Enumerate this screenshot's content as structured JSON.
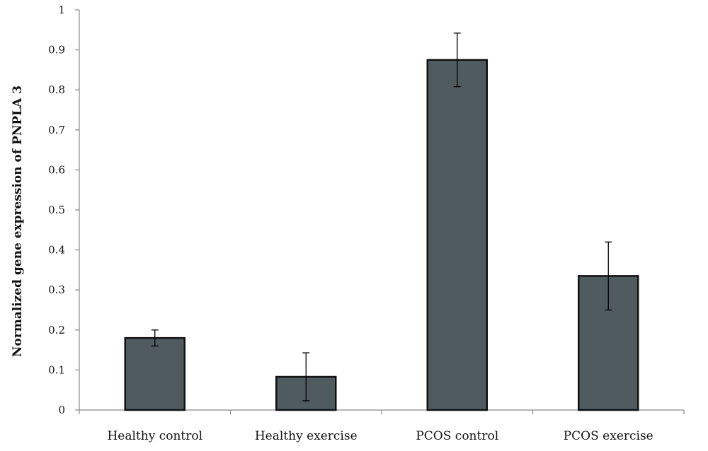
{
  "chart_data": {
    "type": "bar",
    "title": "",
    "xlabel": "",
    "ylabel": "Normalized gene expression of PNPLA 3",
    "categories": [
      "Healthy control",
      "Healthy exercise",
      "PCOS control",
      "PCOS exercise"
    ],
    "values": [
      0.18,
      0.083,
      0.875,
      0.335
    ],
    "error": [
      0.02,
      0.06,
      0.067,
      0.085
    ],
    "ylim": [
      0,
      1
    ],
    "yticks": [
      0,
      0.1,
      0.2,
      0.3,
      0.4,
      0.5,
      0.6,
      0.7,
      0.8,
      0.9,
      1
    ],
    "ytick_labels": [
      "0",
      "0.1",
      "0.2",
      "0.3",
      "0.4",
      "0.5",
      "0.6",
      "0.7",
      "0.8",
      "0.9",
      "1"
    ],
    "grid": false,
    "legend": "none",
    "bar_color": "#4f5b5f",
    "bar_edge_color": "#111111"
  }
}
